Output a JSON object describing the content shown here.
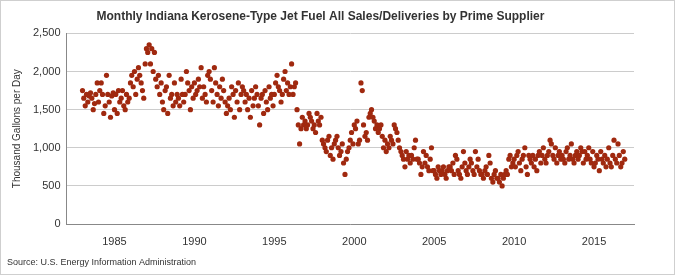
{
  "chart_data": {
    "type": "scatter",
    "title": "Monthly Indiana Kerosene-Type Jet Fuel All Sales/Deliveries by Prime Supplier",
    "y_label": "Thousand Gallons per Day",
    "source": "Source: U.S. Energy Information Administration",
    "color": "#a0290f",
    "marker": "circle",
    "grid": "y",
    "xlim": [
      1982,
      2017.5
    ],
    "xticks": [
      1985,
      1990,
      1995,
      2000,
      2005,
      2010,
      2015
    ],
    "ylim": [
      0,
      2500
    ],
    "yticks": [
      0,
      500,
      {
        "value": 1000,
        "label": "1,000"
      },
      {
        "value": 1500,
        "label": "1,500"
      },
      {
        "value": 2000,
        "label": "2,000"
      },
      {
        "value": 2500,
        "label": "2,500"
      }
    ],
    "x": [
      1983,
      1983.08,
      1983.17,
      1983.25,
      1983.33,
      1983.42,
      1983.5,
      1983.58,
      1983.67,
      1983.75,
      1983.83,
      1983.92,
      1984,
      1984.08,
      1984.17,
      1984.25,
      1984.33,
      1984.42,
      1984.5,
      1984.58,
      1984.67,
      1984.75,
      1984.83,
      1984.92,
      1985,
      1985.08,
      1985.17,
      1985.25,
      1985.33,
      1985.42,
      1985.5,
      1985.58,
      1985.67,
      1985.75,
      1985.83,
      1985.92,
      1986,
      1986.08,
      1986.17,
      1986.25,
      1986.33,
      1986.42,
      1986.5,
      1986.58,
      1986.67,
      1986.75,
      1986.83,
      1986.92,
      1987,
      1987.08,
      1987.17,
      1987.25,
      1987.33,
      1987.42,
      1987.5,
      1987.58,
      1987.67,
      1987.75,
      1987.83,
      1987.92,
      1988,
      1988.08,
      1988.17,
      1988.25,
      1988.33,
      1988.42,
      1988.5,
      1988.58,
      1988.67,
      1988.75,
      1988.83,
      1988.92,
      1989,
      1989.08,
      1989.17,
      1989.25,
      1989.33,
      1989.42,
      1989.5,
      1989.58,
      1989.67,
      1989.75,
      1989.83,
      1989.92,
      1990,
      1990.08,
      1990.17,
      1990.25,
      1990.33,
      1990.42,
      1990.5,
      1990.58,
      1990.67,
      1990.75,
      1990.83,
      1990.92,
      1991,
      1991.08,
      1991.17,
      1991.25,
      1991.33,
      1991.42,
      1991.5,
      1991.58,
      1991.67,
      1991.75,
      1991.83,
      1991.92,
      1992,
      1992.08,
      1992.17,
      1992.25,
      1992.33,
      1992.42,
      1992.5,
      1992.58,
      1992.67,
      1992.75,
      1992.83,
      1992.92,
      1993,
      1993.08,
      1993.17,
      1993.25,
      1993.33,
      1993.42,
      1993.5,
      1993.58,
      1993.67,
      1993.75,
      1993.83,
      1993.92,
      1994,
      1994.08,
      1994.17,
      1994.25,
      1994.33,
      1994.42,
      1994.5,
      1994.58,
      1994.67,
      1994.75,
      1994.83,
      1994.92,
      1995,
      1995.08,
      1995.17,
      1995.25,
      1995.33,
      1995.42,
      1995.5,
      1995.58,
      1995.67,
      1995.75,
      1995.83,
      1995.92,
      1996,
      1996.08,
      1996.17,
      1996.25,
      1996.33,
      1996.42,
      1996.5,
      1996.58,
      1996.67,
      1996.75,
      1996.83,
      1996.92,
      1997,
      1997.08,
      1997.17,
      1997.25,
      1997.33,
      1997.42,
      1997.5,
      1997.58,
      1997.67,
      1997.75,
      1997.83,
      1997.92,
      1998,
      1998.08,
      1998.17,
      1998.25,
      1998.33,
      1998.42,
      1998.5,
      1998.58,
      1998.67,
      1998.75,
      1998.83,
      1998.92,
      1999,
      1999.08,
      1999.17,
      1999.25,
      1999.33,
      1999.42,
      1999.5,
      1999.58,
      1999.67,
      1999.75,
      1999.83,
      1999.92,
      2000,
      2000.08,
      2000.17,
      2000.25,
      2000.33,
      2000.42,
      2000.5,
      2000.58,
      2000.67,
      2000.75,
      2000.83,
      2000.92,
      2001,
      2001.08,
      2001.17,
      2001.25,
      2001.33,
      2001.42,
      2001.5,
      2001.58,
      2001.67,
      2001.75,
      2001.83,
      2001.92,
      2002,
      2002.08,
      2002.17,
      2002.25,
      2002.33,
      2002.42,
      2002.5,
      2002.58,
      2002.67,
      2002.75,
      2002.83,
      2002.92,
      2003,
      2003.08,
      2003.17,
      2003.25,
      2003.33,
      2003.42,
      2003.5,
      2003.58,
      2003.67,
      2003.75,
      2003.83,
      2003.92,
      2004,
      2004.08,
      2004.17,
      2004.25,
      2004.33,
      2004.42,
      2004.5,
      2004.58,
      2004.67,
      2004.75,
      2004.83,
      2004.92,
      2005,
      2005.08,
      2005.17,
      2005.25,
      2005.33,
      2005.42,
      2005.5,
      2005.58,
      2005.67,
      2005.75,
      2005.83,
      2005.92,
      2006,
      2006.08,
      2006.17,
      2006.25,
      2006.33,
      2006.42,
      2006.5,
      2006.58,
      2006.67,
      2006.75,
      2006.83,
      2006.92,
      2007,
      2007.08,
      2007.17,
      2007.25,
      2007.33,
      2007.42,
      2007.5,
      2007.58,
      2007.67,
      2007.75,
      2007.83,
      2007.92,
      2008,
      2008.08,
      2008.17,
      2008.25,
      2008.33,
      2008.42,
      2008.5,
      2008.58,
      2008.67,
      2008.75,
      2008.83,
      2008.92,
      2009,
      2009.08,
      2009.17,
      2009.25,
      2009.33,
      2009.42,
      2009.5,
      2009.58,
      2009.67,
      2009.75,
      2009.83,
      2009.92,
      2010,
      2010.08,
      2010.17,
      2010.25,
      2010.33,
      2010.42,
      2010.5,
      2010.58,
      2010.67,
      2010.75,
      2010.83,
      2010.92,
      2011,
      2011.08,
      2011.17,
      2011.25,
      2011.33,
      2011.42,
      2011.5,
      2011.58,
      2011.67,
      2011.75,
      2011.83,
      2011.92,
      2012,
      2012.08,
      2012.17,
      2012.25,
      2012.33,
      2012.42,
      2012.5,
      2012.58,
      2012.67,
      2012.75,
      2012.83,
      2012.92,
      2013,
      2013.08,
      2013.17,
      2013.25,
      2013.33,
      2013.42,
      2013.5,
      2013.58,
      2013.67,
      2013.75,
      2013.83,
      2013.92,
      2014,
      2014.08,
      2014.17,
      2014.25,
      2014.33,
      2014.42,
      2014.5,
      2014.58,
      2014.67,
      2014.75,
      2014.83,
      2014.92,
      2015,
      2015.08,
      2015.17,
      2015.25,
      2015.33,
      2015.42,
      2015.5,
      2015.58,
      2015.67,
      2015.75,
      2015.83,
      2015.92,
      2016,
      2016.08,
      2016.17,
      2016.25,
      2016.33,
      2016.42,
      2016.5,
      2016.58,
      2016.67,
      2016.75,
      2016.83,
      2016.92
    ],
    "values": [
      1750,
      1650,
      1550,
      1700,
      1600,
      1680,
      1720,
      1650,
      1500,
      1580,
      1700,
      1850,
      1600,
      1750,
      1850,
      1700,
      1450,
      1550,
      1950,
      1700,
      1600,
      1400,
      1680,
      1720,
      1500,
      1700,
      1450,
      1750,
      1600,
      1650,
      1750,
      1550,
      1500,
      1700,
      1600,
      1650,
      1850,
      1950,
      1800,
      2000,
      1700,
      1900,
      2050,
      1950,
      1850,
      1750,
      1650,
      2100,
      2300,
      2250,
      2350,
      2100,
      2300,
      2000,
      2250,
      1900,
      1800,
      1950,
      1700,
      1850,
      1600,
      1500,
      1750,
      1800,
      1450,
      1950,
      1650,
      1700,
      1550,
      1850,
      1600,
      1700,
      1650,
      1550,
      1900,
      1700,
      1600,
      1700,
      2000,
      1850,
      1750,
      1500,
      1800,
      1650,
      1850,
      1700,
      1750,
      1900,
      1800,
      2050,
      1650,
      1800,
      1700,
      1600,
      1950,
      2000,
      1900,
      1750,
      1600,
      2050,
      1850,
      1700,
      1550,
      1800,
      1650,
      1900,
      1750,
      1600,
      1450,
      1550,
      1650,
      1500,
      1800,
      1700,
      1400,
      1750,
      1600,
      1850,
      1500,
      1700,
      1800,
      1750,
      1600,
      1700,
      1500,
      1650,
      1400,
      1750,
      1550,
      1650,
      1800,
      1700,
      1550,
      1300,
      1650,
      1700,
      1450,
      1750,
      1600,
      1500,
      1800,
      1650,
      1700,
      1550,
      1700,
      1850,
      1950,
      1800,
      1750,
      1600,
      1700,
      1900,
      2000,
      1750,
      1850,
      1700,
      1800,
      2100,
      1700,
      1800,
      1850,
      1500,
      1300,
      1050,
      1250,
      1400,
      1300,
      1350,
      1250,
      1300,
      1450,
      1400,
      1350,
      1250,
      1300,
      1200,
      1450,
      1350,
      1300,
      1400,
      1100,
      1050,
      1000,
      950,
      1100,
      1150,
      900,
      1000,
      850,
      1050,
      1100,
      1150,
      1000,
      900,
      950,
      1050,
      800,
      650,
      850,
      950,
      1000,
      1100,
      1200,
      1050,
      1300,
      1250,
      1350,
      1050,
      1100,
      1850,
      1750,
      1300,
      1150,
      1200,
      1100,
      1400,
      1450,
      1500,
      1400,
      1350,
      1250,
      1300,
      1200,
      1250,
      1300,
      1150,
      1000,
      1100,
      950,
      1050,
      1000,
      1150,
      1100,
      1050,
      1300,
      1250,
      1200,
      1100,
      1000,
      950,
      900,
      850,
      750,
      950,
      850,
      900,
      800,
      900,
      850,
      1000,
      1100,
      850,
      850,
      800,
      650,
      750,
      950,
      800,
      900,
      750,
      700,
      850,
      1000,
      700,
      700,
      650,
      600,
      750,
      700,
      650,
      700,
      750,
      650,
      600,
      700,
      750,
      750,
      700,
      800,
      650,
      900,
      850,
      700,
      650,
      600,
      750,
      950,
      800,
      700,
      650,
      750,
      850,
      800,
      700,
      650,
      950,
      750,
      850,
      700,
      650,
      650,
      600,
      700,
      750,
      650,
      900,
      800,
      600,
      550,
      650,
      700,
      600,
      600,
      550,
      650,
      500,
      600,
      650,
      700,
      650,
      850,
      900,
      750,
      800,
      850,
      750,
      900,
      950,
      800,
      700,
      850,
      900,
      1000,
      750,
      650,
      900,
      850,
      800,
      900,
      750,
      850,
      700,
      900,
      950,
      800,
      900,
      1000,
      850,
      800,
      900,
      950,
      1100,
      1050,
      900,
      850,
      1000,
      800,
      900,
      950,
      850,
      900,
      850,
      800,
      950,
      1000,
      850,
      900,
      1050,
      850,
      800,
      900,
      950,
      850,
      900,
      1000,
      950,
      800,
      950,
      850,
      900,
      1000,
      850,
      800,
      950,
      750,
      800,
      900,
      850,
      700,
      950,
      850,
      800,
      900,
      750,
      850,
      1000,
      800,
      750,
      900,
      1100,
      850,
      800,
      1050,
      900,
      750,
      800,
      950,
      850
    ]
  }
}
